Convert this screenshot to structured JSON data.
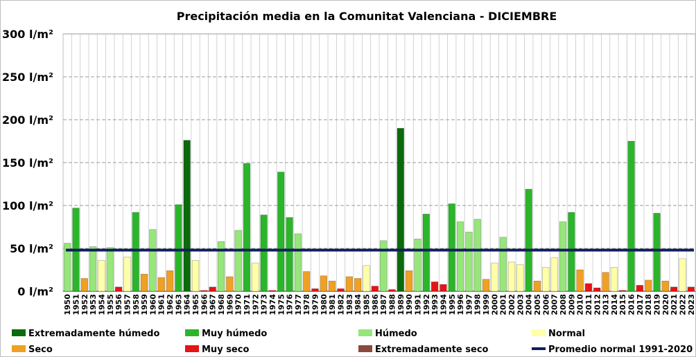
{
  "chart_data": {
    "type": "bar",
    "title": "Precipitación media en la Comunitat Valenciana - DICIEMBRE",
    "xlabel": "",
    "ylabel": "",
    "ylim": [
      0,
      300
    ],
    "y_ticks": [
      "0 l/m²",
      "50 l/m²",
      "100 l/m²",
      "150 l/m²",
      "200 l/m²",
      "250 l/m²",
      "300 l/m²"
    ],
    "grid": true,
    "categories": [
      "1950",
      "1951",
      "1952",
      "1953",
      "1954",
      "1955",
      "1956",
      "1957",
      "1958",
      "1959",
      "1960",
      "1961",
      "1962",
      "1963",
      "1964",
      "1965",
      "1966",
      "1967",
      "1968",
      "1969",
      "1970",
      "1971",
      "1972",
      "1973",
      "1974",
      "1975",
      "1976",
      "1977",
      "1978",
      "1979",
      "1980",
      "1981",
      "1982",
      "1983",
      "1984",
      "1985",
      "1986",
      "1987",
      "1988",
      "1989",
      "1990",
      "1991",
      "1992",
      "1993",
      "1994",
      "1995",
      "1996",
      "1997",
      "1998",
      "1999",
      "2000",
      "2001",
      "2002",
      "2003",
      "2004",
      "2005",
      "2006",
      "2007",
      "2008",
      "2009",
      "2010",
      "2011",
      "2012",
      "2013",
      "2014",
      "2015",
      "2016",
      "2017",
      "2018",
      "2019",
      "2020",
      "2021",
      "2022",
      "2023"
    ],
    "values": [
      56,
      97,
      15,
      52,
      36,
      51,
      5,
      40,
      92,
      20,
      72,
      16,
      24,
      101,
      176,
      36,
      1,
      5,
      58,
      17,
      71,
      149,
      33,
      89,
      1,
      139,
      86,
      67,
      23,
      3,
      18,
      12,
      3,
      17,
      15,
      30,
      6,
      59,
      2,
      190,
      24,
      61,
      90,
      11,
      8,
      102,
      81,
      69,
      84,
      14,
      33,
      63,
      34,
      31,
      119,
      12,
      28,
      39,
      81,
      92,
      25,
      9,
      4,
      22,
      28,
      1,
      175,
      7,
      13,
      91,
      12,
      5,
      38,
      5
    ],
    "classes": [
      "H",
      "MH",
      "S",
      "H",
      "N",
      "H",
      "MS",
      "N",
      "MH",
      "S",
      "H",
      "S",
      "S",
      "MH",
      "EH",
      "N",
      "MS",
      "MS",
      "H",
      "S",
      "H",
      "MH",
      "N",
      "MH",
      "MS",
      "MH",
      "MH",
      "H",
      "S",
      "MS",
      "S",
      "S",
      "MS",
      "S",
      "S",
      "N",
      "MS",
      "H",
      "MS",
      "EH",
      "S",
      "H",
      "MH",
      "MS",
      "MS",
      "MH",
      "H",
      "H",
      "H",
      "S",
      "N",
      "H",
      "N",
      "N",
      "MH",
      "S",
      "N",
      "N",
      "H",
      "MH",
      "S",
      "MS",
      "MS",
      "S",
      "N",
      "MS",
      "MH",
      "MS",
      "S",
      "MH",
      "S",
      "MS",
      "N",
      "MS"
    ],
    "reference_line": {
      "label": "Promedio normal 1991-2020",
      "value": 48
    },
    "legend": [
      {
        "code": "EH",
        "label": "Extremadamente húmedo",
        "color": "#0b6a0b"
      },
      {
        "code": "MH",
        "label": "Muy húmedo",
        "color": "#2bb52b"
      },
      {
        "code": "H",
        "label": "Húmedo",
        "color": "#96e67a"
      },
      {
        "code": "N",
        "label": "Normal",
        "color": "#ffffa8"
      },
      {
        "code": "S",
        "label": "Seco",
        "color": "#f0a023"
      },
      {
        "code": "MS",
        "label": "Muy seco",
        "color": "#e61414"
      },
      {
        "code": "ES",
        "label": "Extremadamente seco",
        "color": "#8b4a3c"
      },
      {
        "code": "AVG",
        "label": "Promedio normal 1991-2020",
        "color": "#0f1f5a"
      }
    ]
  }
}
